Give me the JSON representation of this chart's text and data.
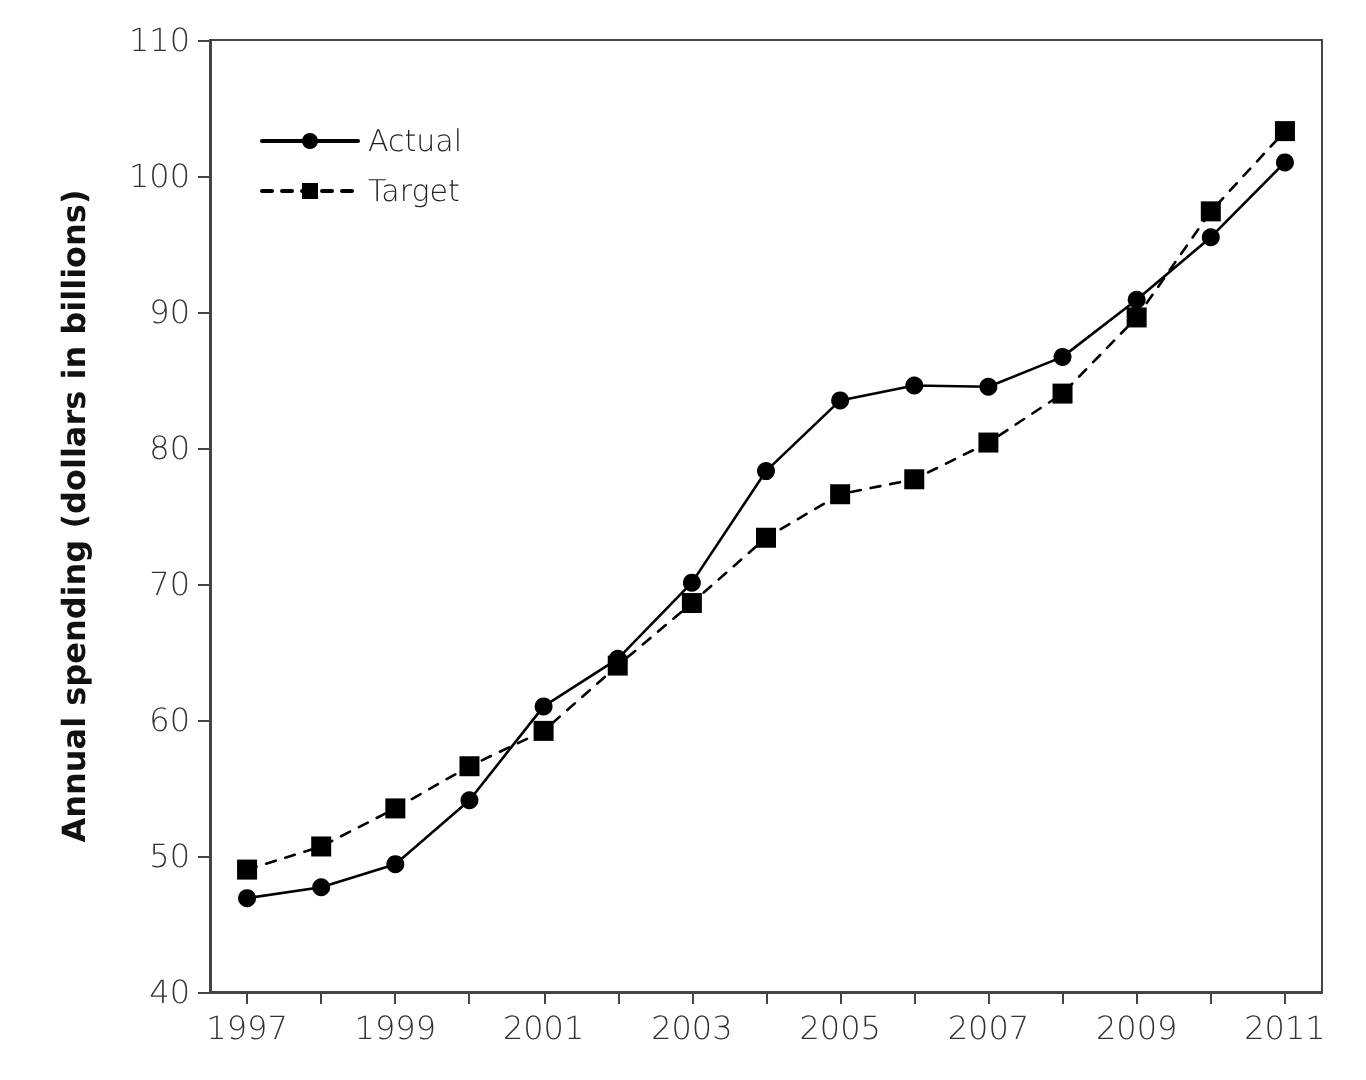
{
  "chart_data": {
    "type": "line",
    "ylabel": "Annual spending (dollars in billions)",
    "x": [
      1997,
      1998,
      1999,
      2000,
      2001,
      2002,
      2003,
      2004,
      2005,
      2006,
      2007,
      2008,
      2009,
      2010,
      2011
    ],
    "series": [
      {
        "name": "Actual",
        "color": "#000000",
        "marker": "circle",
        "line_style": "solid",
        "values": [
          46.9,
          47.7,
          49.4,
          54.1,
          61.0,
          64.5,
          70.1,
          78.3,
          83.5,
          84.6,
          84.5,
          86.7,
          90.9,
          95.5,
          101.0
        ]
      },
      {
        "name": "Target",
        "color": "#000000",
        "marker": "square",
        "line_style": "dashed",
        "values": [
          49.0,
          50.7,
          53.5,
          56.6,
          59.2,
          64.0,
          68.6,
          73.4,
          76.6,
          77.7,
          80.4,
          84.0,
          89.6,
          97.4,
          103.3
        ]
      }
    ],
    "xlim": [
      1996.5,
      2011.5
    ],
    "xticks": [
      1997,
      {
        "value": 1998,
        "label": null
      },
      1999,
      {
        "value": 2000,
        "label": null
      },
      2001,
      {
        "value": 2002,
        "label": null
      },
      2003,
      {
        "value": 2004,
        "label": null
      },
      2005,
      {
        "value": 2006,
        "label": null
      },
      2007,
      {
        "value": 2008,
        "label": null
      },
      2009,
      {
        "value": 2010,
        "label": null
      },
      2011
    ],
    "ylim": [
      40,
      110
    ],
    "yticks": [
      40,
      50,
      60,
      70,
      80,
      90,
      100,
      110
    ],
    "grid": false,
    "legend": "top left"
  }
}
